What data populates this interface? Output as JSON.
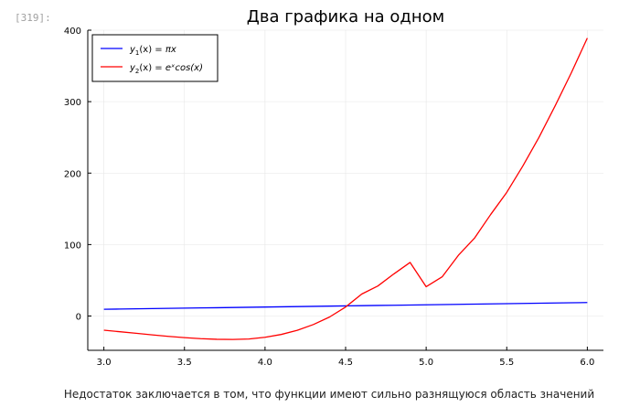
{
  "cell": {
    "prompt": "[319]:"
  },
  "caption": "Недостаток заключается в том, что функции имеют сильно разнящуюся область значений",
  "chart_data": {
    "type": "line",
    "title": "Два графика на одном",
    "xlim": [
      2.9,
      6.1
    ],
    "ylim": [
      -48,
      400
    ],
    "xticks": [
      3.0,
      3.5,
      4.0,
      4.5,
      5.0,
      5.5,
      6.0
    ],
    "xtick_labels": [
      "3.0",
      "3.5",
      "4.0",
      "4.5",
      "5.0",
      "5.5",
      "6.0"
    ],
    "yticks": [
      0,
      100,
      200,
      300,
      400
    ],
    "ytick_labels": [
      "0",
      "100",
      "200",
      "300",
      "400"
    ],
    "grid": true,
    "legend_position": "top-left",
    "x": [
      3.0,
      3.1,
      3.2,
      3.3,
      3.4,
      3.5,
      3.6,
      3.7,
      3.8,
      3.9,
      4.0,
      4.1,
      4.2,
      4.3,
      4.4,
      4.5,
      4.6,
      4.7,
      4.8,
      4.9,
      5.0,
      5.1,
      5.2,
      5.3,
      5.4,
      5.5,
      5.6,
      5.7,
      5.8,
      5.9,
      6.0
    ],
    "series": [
      {
        "name": "y₁(x) = πx",
        "color": "#0000ff",
        "values": [
          9.42,
          9.74,
          10.05,
          10.37,
          10.68,
          11.0,
          11.31,
          11.62,
          11.94,
          12.25,
          12.57,
          12.88,
          13.19,
          13.51,
          13.82,
          14.14,
          14.45,
          14.77,
          15.08,
          15.39,
          15.71,
          16.02,
          16.34,
          16.65,
          16.96,
          17.28,
          17.59,
          17.91,
          18.22,
          18.54,
          18.85
        ]
      },
      {
        "name": "y₂(x) = eˣcos(x)",
        "color": "#ff0000",
        "values": [
          -19.88,
          -22.0,
          -24.19,
          -26.38,
          -28.43,
          -30.23,
          -31.67,
          -32.57,
          -32.77,
          -32.14,
          -29.79,
          -25.84,
          -19.95,
          -11.91,
          -1.43,
          12.62,
          30.72,
          42.0,
          59.0,
          75.0,
          41.0,
          55.0,
          85.0,
          109.0,
          142.0,
          173.0,
          210.0,
          250.0,
          294.0,
          340.0,
          389.0
        ]
      }
    ]
  },
  "legend": {
    "entries": [
      {
        "pre": "y",
        "sub": "1",
        "mid": "(x) = ",
        "expr": "πx"
      },
      {
        "pre": "y",
        "sub": "2",
        "mid": "(x) = ",
        "expr": "eˣcos(x)"
      }
    ]
  }
}
